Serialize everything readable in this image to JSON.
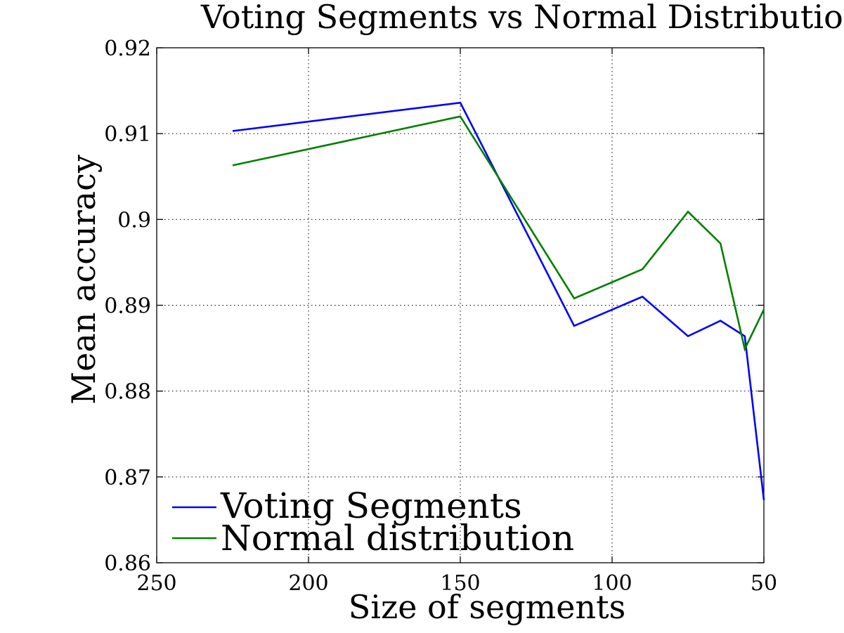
{
  "chart_data": {
    "type": "line",
    "title": "Voting Segments vs Normal Distributio",
    "xlabel": "Size of segments",
    "ylabel": "Mean accuracy",
    "xlim": [
      250,
      50
    ],
    "ylim": [
      0.86,
      0.92
    ],
    "x_reversed": true,
    "x_ticks": [
      250,
      200,
      150,
      100,
      50
    ],
    "x_tick_labels": [
      "250",
      "200",
      "150",
      "100",
      "50"
    ],
    "y_ticks": [
      0.86,
      0.87,
      0.88,
      0.89,
      0.9,
      0.91,
      0.92
    ],
    "y_tick_labels": [
      "0.86",
      "0.87",
      "0.88",
      "0.89",
      "0.9",
      "0.91",
      "0.92"
    ],
    "grid": true,
    "legend_position": "bottom-left",
    "series": [
      {
        "name": "Voting Segments",
        "color": "#0000ff",
        "x": [
          225,
          150,
          112.5,
          90,
          75,
          64.3,
          56.3,
          50
        ],
        "y": [
          0.9103,
          0.9136,
          0.8876,
          0.891,
          0.8864,
          0.8882,
          0.8864,
          0.8673
        ]
      },
      {
        "name": "Normal distribution",
        "color": "#007f00",
        "x": [
          225,
          150,
          112.5,
          90,
          75,
          64.3,
          56.3,
          50
        ],
        "y": [
          0.9063,
          0.912,
          0.8908,
          0.8942,
          0.9009,
          0.8972,
          0.8849,
          0.8895
        ]
      }
    ]
  }
}
